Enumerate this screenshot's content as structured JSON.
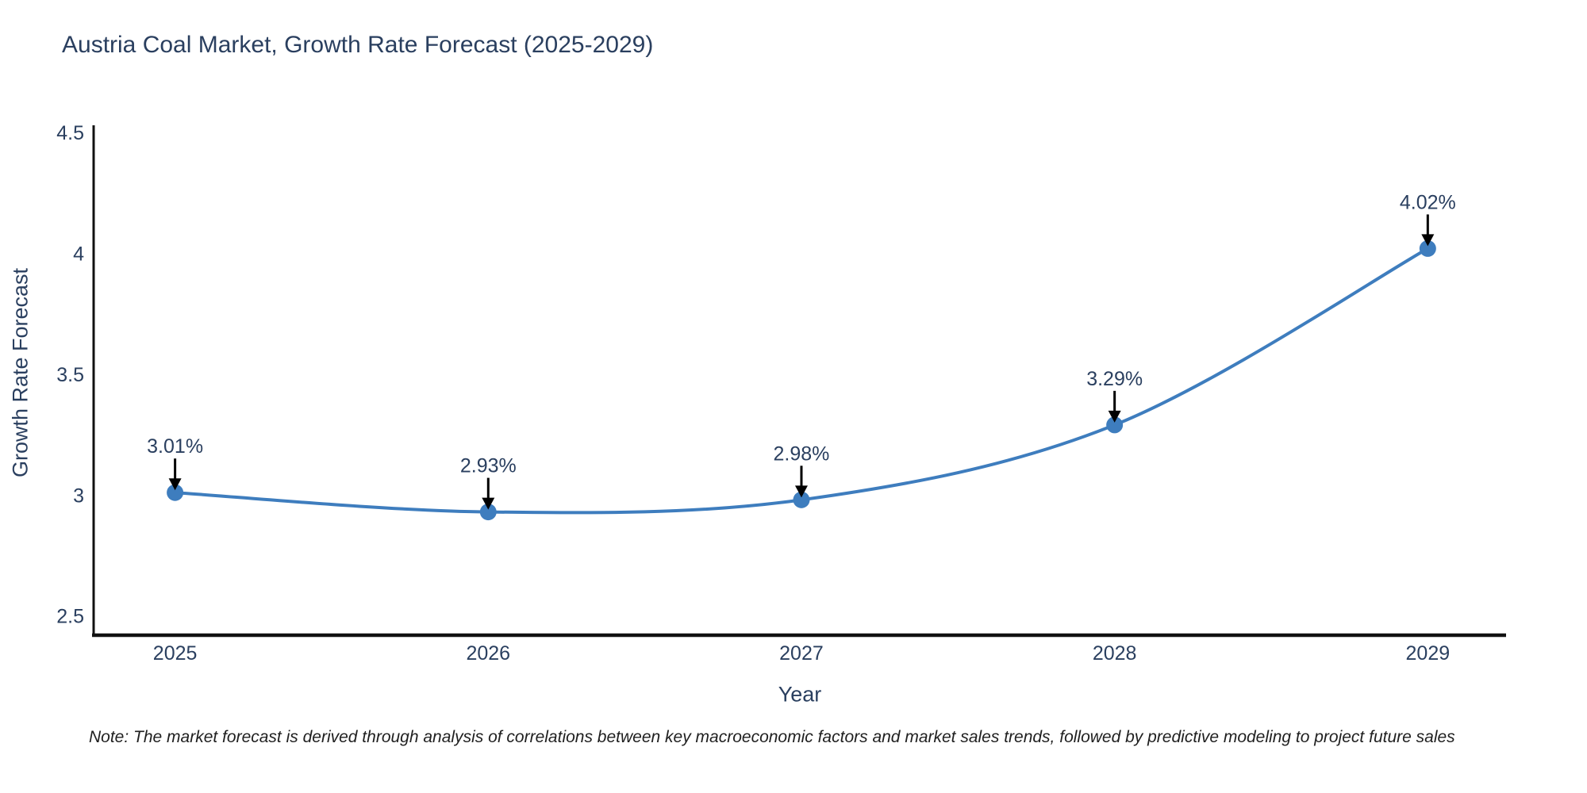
{
  "footnote": {
    "text": "Note: The market forecast is derived through analysis of correlations between key macroeconomic factors and market sales trends, followed by predictive modeling to project future sales"
  },
  "chart_data": {
    "type": "line",
    "title": "Austria Coal Market, Growth Rate Forecast (2025-2029)",
    "xlabel": "Year",
    "ylabel": "Growth Rate Forecast",
    "x": [
      2025,
      2026,
      2027,
      2028,
      2029
    ],
    "xtick_labels": [
      "2025",
      "2026",
      "2027",
      "2028",
      "2029"
    ],
    "series": [
      {
        "name": "Growth Rate Forecast",
        "values": [
          3.01,
          2.93,
          2.98,
          3.29,
          4.02
        ],
        "point_labels": [
          "3.01%",
          "2.93%",
          "2.98%",
          "3.29%",
          "4.02%"
        ]
      }
    ],
    "yticks": [
      2.5,
      3,
      3.5,
      4,
      4.5
    ],
    "ytick_labels": [
      "2.5",
      "3",
      "3.5",
      "4",
      "4.5"
    ],
    "xlim": [
      2024.74,
      2029.25
    ],
    "ylim": [
      2.42,
      4.53
    ],
    "line_shape": "spline",
    "grid": false,
    "legend": "none",
    "annotations_have_arrows": true,
    "colors": {
      "line": "#3E7DBE",
      "marker": "#3E7DBE",
      "axis": "#111111",
      "tick_text": "#2a3f5f",
      "annotation_text": "#2a3f5f",
      "arrow": "#000000",
      "background": "#ffffff"
    }
  }
}
